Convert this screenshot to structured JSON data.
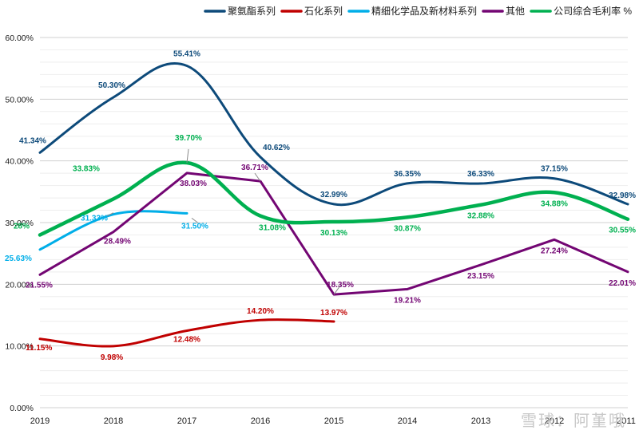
{
  "chart_data": {
    "type": "line",
    "title": "",
    "xlabel": "",
    "ylabel": "",
    "categories": [
      "2019",
      "2018",
      "2017",
      "2016",
      "2015",
      "2014",
      "2013",
      "2012",
      "2011"
    ],
    "yticks": [
      "0.00%",
      "10.00%",
      "20.00%",
      "30.00%",
      "40.00%",
      "50.00%",
      "60.00%"
    ],
    "ylim": [
      0,
      60
    ],
    "grid": true,
    "legend_position": "top",
    "series": [
      {
        "name": "聚氨酯系列",
        "color": "#0d4a7a",
        "width": 3,
        "values": [
          41.34,
          50.3,
          55.41,
          40.62,
          32.99,
          36.35,
          36.33,
          37.15,
          32.98
        ],
        "labels": [
          "41.34%",
          "50.30%",
          "55.41%",
          "40.62%",
          "32.99%",
          "36.35%",
          "36.33%",
          "37.15%",
          "32.98%"
        ]
      },
      {
        "name": "石化系列",
        "color": "#c00000",
        "width": 3,
        "values": [
          11.15,
          9.98,
          12.48,
          14.2,
          13.97,
          null,
          null,
          null,
          null
        ],
        "labels": [
          "11.15%",
          "9.98%",
          "12.48%",
          "14.20%",
          "13.97%",
          null,
          null,
          null,
          null
        ]
      },
      {
        "name": "精细化学品及新材料系列",
        "color": "#00aee8",
        "width": 3,
        "values": [
          25.63,
          31.33,
          31.5,
          null,
          null,
          null,
          null,
          null,
          null
        ],
        "labels": [
          "25.63%",
          "31.33%",
          "31.50%",
          null,
          null,
          null,
          null,
          null,
          null
        ]
      },
      {
        "name": "其他",
        "color": "#730673",
        "width": 3,
        "values": [
          21.55,
          28.49,
          38.03,
          36.71,
          18.35,
          19.21,
          23.15,
          27.24,
          22.01
        ],
        "labels": [
          "21.55%",
          "28.49%",
          "38.03%",
          "36.71%",
          "18.35%",
          "19.21%",
          "23.15%",
          "27.24%",
          "22.01%"
        ]
      },
      {
        "name": "公司综合毛利率 %",
        "color": "#00b050",
        "width": 4.5,
        "values": [
          28.0,
          33.83,
          39.7,
          31.08,
          30.13,
          30.87,
          32.88,
          34.88,
          30.55
        ],
        "labels": [
          "28%",
          "33.83%",
          "39.70%",
          "31.08%",
          "30.13%",
          "30.87%",
          "32.88%",
          "34.88%",
          "30.55%"
        ]
      }
    ]
  },
  "watermark": "雪球：阿堇哦"
}
